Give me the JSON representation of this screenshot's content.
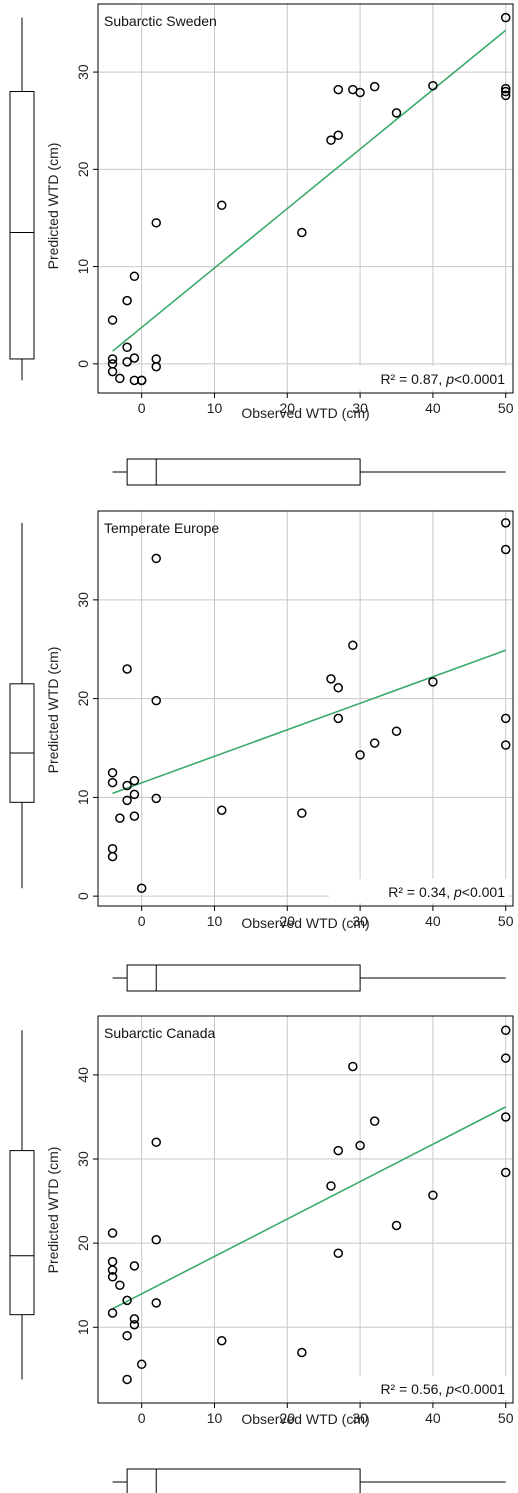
{
  "chart_data": [
    {
      "type": "scatter",
      "title": "Subarctic Sweden",
      "xlabel": "Observed WTD (cm)",
      "ylabel": "Predicted WTD (cm)",
      "xlim": [
        -6,
        51
      ],
      "ylim": [
        -3,
        37
      ],
      "xticks": [
        0,
        10,
        20,
        30,
        40,
        50
      ],
      "yticks": [
        0,
        10,
        20,
        30
      ],
      "grid": true,
      "stat_label": "R² = 0.87, p<0.0001",
      "stat": {
        "r2_text": "R² = 0.87, ",
        "p_italic": "p",
        "p_rest": "<0.0001"
      },
      "fit": {
        "x": [
          -4,
          50
        ],
        "y": [
          1.3,
          34.3
        ]
      },
      "points": {
        "x": [
          -4,
          -4,
          -4,
          -4,
          -3,
          -2,
          -2,
          -2,
          -1,
          -1,
          -1,
          0,
          0,
          2,
          2,
          2,
          11,
          22,
          26,
          27,
          27,
          29,
          30,
          32,
          35,
          40,
          50,
          50,
          50,
          50
        ],
        "y": [
          4.5,
          0.5,
          0.0,
          -0.8,
          -1.5,
          6.5,
          1.7,
          0.2,
          9.0,
          0.6,
          -1.7,
          -1.7,
          -1.7,
          14.5,
          0.5,
          -0.3,
          16.3,
          13.5,
          23.0,
          28.2,
          23.5,
          28.2,
          27.9,
          28.5,
          25.8,
          28.6,
          35.6,
          28.3,
          28.0,
          27.6
        ]
      },
      "boxplot_y": {
        "min": -1.7,
        "q1": 0.5,
        "median": 13.5,
        "q3": 28.0,
        "max": 35.6
      },
      "boxplot_x": {
        "min": -4,
        "q1": -2,
        "median": 2,
        "q3": 30,
        "max": 50
      }
    },
    {
      "type": "scatter",
      "title": "Temperate Europe",
      "xlabel": "Observed WTD (cm)",
      "ylabel": "Predicted WTD (cm)",
      "xlim": [
        -6,
        51
      ],
      "ylim": [
        -1,
        39
      ],
      "xticks": [
        0,
        10,
        20,
        30,
        40,
        50
      ],
      "yticks": [
        0,
        10,
        20,
        30
      ],
      "grid": true,
      "stat_label": "R² = 0.34, p<0.001",
      "stat": {
        "r2_text": "R² = 0.34, ",
        "p_italic": "p",
        "p_rest": "<0.001"
      },
      "fit": {
        "x": [
          -4,
          50
        ],
        "y": [
          10.4,
          24.9
        ]
      },
      "points": {
        "x": [
          -4,
          -4,
          -4,
          -4,
          -3,
          -2,
          -2,
          -2,
          -1,
          -1,
          -1,
          0,
          2,
          2,
          2,
          11,
          22,
          26,
          27,
          27,
          29,
          30,
          32,
          35,
          40,
          50,
          50,
          50,
          50
        ],
        "y": [
          12.5,
          11.5,
          4.8,
          4.0,
          7.9,
          23.0,
          11.2,
          9.7,
          11.7,
          10.3,
          8.1,
          0.8,
          34.2,
          19.8,
          9.9,
          8.7,
          8.4,
          22.0,
          21.1,
          18.0,
          25.4,
          14.3,
          15.5,
          16.7,
          21.7,
          37.8,
          35.1,
          18.0,
          15.3
        ]
      },
      "boxplot_y": {
        "min": 0.8,
        "q1": 9.5,
        "median": 14.5,
        "q3": 21.5,
        "max": 37.8
      },
      "boxplot_x": {
        "min": -4,
        "q1": -2,
        "median": 2,
        "q3": 30,
        "max": 50
      }
    },
    {
      "type": "scatter",
      "title": "Subarctic Canada",
      "xlabel": "Observed WTD (cm)",
      "ylabel": "Predicted WTD (cm)",
      "xlim": [
        -6,
        51
      ],
      "ylim": [
        1,
        47
      ],
      "xticks": [
        0,
        10,
        20,
        30,
        40,
        50
      ],
      "yticks": [
        10,
        20,
        30,
        40
      ],
      "grid": true,
      "stat_label": "R² = 0.56, p<0.0001",
      "stat": {
        "r2_text": "R² = 0.56, ",
        "p_italic": "p",
        "p_rest": "<0.0001"
      },
      "fit": {
        "x": [
          -4,
          50
        ],
        "y": [
          12.2,
          36.2
        ]
      },
      "points": {
        "x": [
          -4,
          -4,
          -4,
          -4,
          -4,
          -3,
          -2,
          -2,
          -2,
          -1,
          -1,
          -1,
          0,
          2,
          2,
          2,
          11,
          22,
          26,
          27,
          27,
          29,
          30,
          32,
          35,
          40,
          50,
          50,
          50,
          50
        ],
        "y": [
          21.2,
          17.8,
          16.8,
          11.7,
          16.0,
          15.0,
          13.2,
          9.0,
          3.8,
          17.3,
          11.0,
          10.3,
          5.6,
          32.0,
          20.4,
          12.9,
          8.4,
          7.0,
          26.8,
          31.0,
          18.8,
          41.0,
          31.6,
          34.5,
          22.1,
          25.7,
          45.3,
          42.0,
          35.0,
          28.4
        ]
      },
      "boxplot_y": {
        "min": 3.8,
        "q1": 11.5,
        "median": 18.5,
        "q3": 31.0,
        "max": 45.3
      },
      "boxplot_x": {
        "min": -4,
        "q1": -2,
        "median": 2,
        "q3": 30,
        "max": 50
      }
    }
  ],
  "colors": {
    "fit_line": "#3aaa6a",
    "grid": "#c8c8c8",
    "axis": "#000000",
    "marker": "#000000",
    "stat_bg": "#ffffff"
  }
}
